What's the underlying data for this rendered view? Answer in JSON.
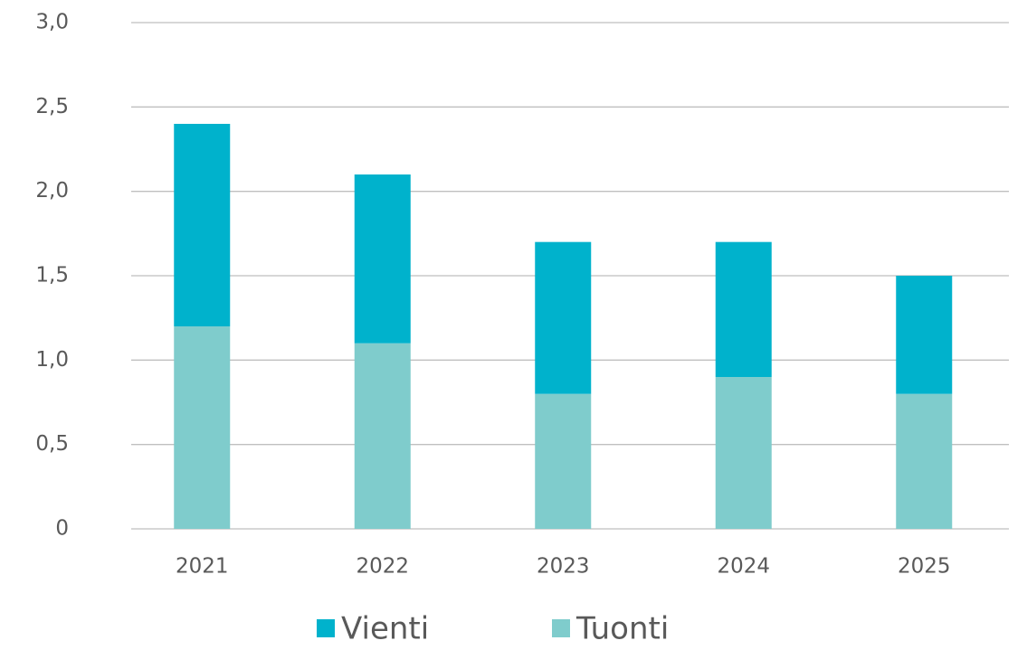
{
  "chart_data": {
    "type": "stacked_bar",
    "categories": [
      "2021",
      "2022",
      "2023",
      "2024",
      "2025"
    ],
    "series": [
      {
        "name": "Vienti",
        "color": "#00b2cc",
        "values": [
          1.2,
          1.0,
          0.9,
          0.8,
          0.7
        ]
      },
      {
        "name": "Tuonti",
        "color": "#7fcccc",
        "values": [
          1.2,
          1.1,
          0.8,
          0.9,
          0.8
        ]
      }
    ],
    "ylim": [
      0,
      3
    ],
    "yticks": [
      0,
      {
        "value": 0.5,
        "label": "0,5"
      },
      {
        "value": 1,
        "label": "1,0"
      },
      {
        "value": 1.5,
        "label": "1,5"
      },
      {
        "value": 2,
        "label": "2,0"
      },
      {
        "value": 2.5,
        "label": "2,5"
      },
      {
        "value": 3,
        "label": "3,0"
      }
    ],
    "grid": true
  }
}
